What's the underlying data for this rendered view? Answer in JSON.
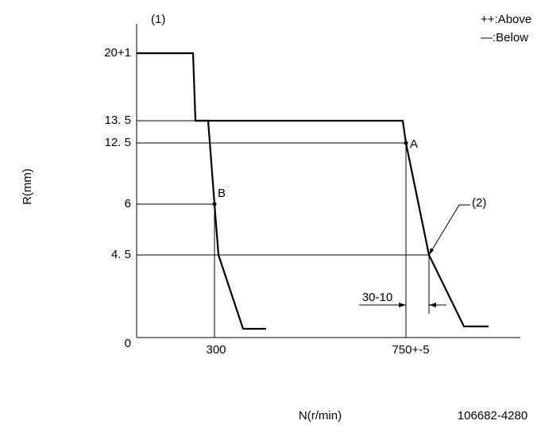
{
  "header": {
    "marker": "(1)",
    "legend_above": "++:Above",
    "legend_below": "—:Below"
  },
  "y_axis": {
    "title": "R(mm)",
    "labels": [
      "20+1",
      "13. 5",
      "12. 5",
      "6",
      "4. 5",
      "0"
    ]
  },
  "x_axis": {
    "title": "N(r/min)",
    "labels": [
      "300",
      "750+-5"
    ]
  },
  "points": [
    "A",
    "B"
  ],
  "annotations": {
    "dimension": "30-10",
    "callout": "(2)"
  },
  "footer": {
    "code": "106682-4280"
  }
}
